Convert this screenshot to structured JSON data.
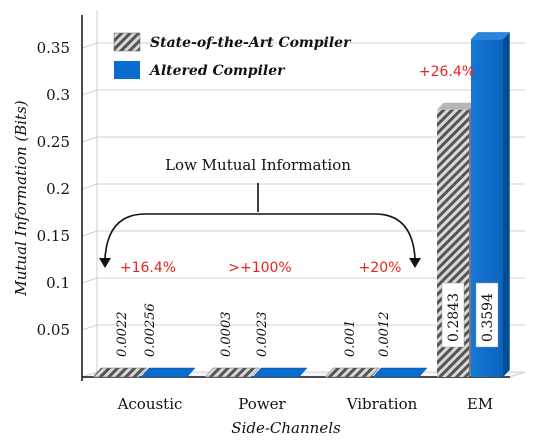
{
  "chart_data": {
    "type": "bar",
    "categories": [
      "Acoustic",
      "Power",
      "Vibration",
      "EM"
    ],
    "series": [
      {
        "name": "State-of-the-Art Compiler",
        "values": [
          0.0022,
          0.0003,
          0.001,
          0.2843
        ],
        "labels": [
          "0.0022",
          "0.0003",
          "0.001",
          "0.2843"
        ],
        "color": "#8c8c8c"
      },
      {
        "name": "Altered Compiler",
        "values": [
          0.00256,
          0.0023,
          0.0012,
          0.3594
        ],
        "labels": [
          "0.00256",
          "0.0023",
          "0.0012",
          "0.3594"
        ],
        "color": "#0a6ccf"
      }
    ],
    "improvements": [
      "+16.4%",
      ">+100%",
      "+20%",
      "+26.4%"
    ],
    "annotation": "Low Mutual Information",
    "xlabel": "Side-Channels",
    "ylabel": "Mutual Information (Bits)",
    "yticks": [
      "0.05",
      "0.1",
      "0.15",
      "0.2",
      "0.25",
      "0.3",
      "0.35"
    ],
    "ylim": [
      0,
      0.37
    ],
    "grid": true,
    "legend_position": "top-left"
  }
}
